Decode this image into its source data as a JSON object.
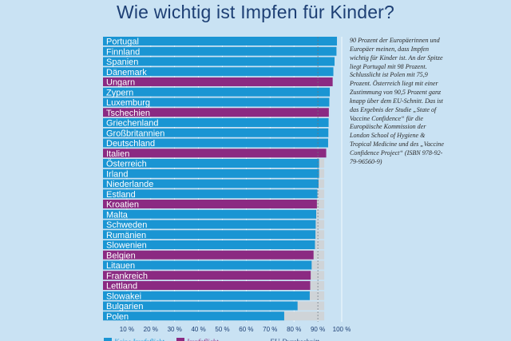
{
  "page": {
    "title": "Wie wichtig ist Impfen für Kinder?",
    "caption": "90 Prozent der Europäerinnen und Europäer meinen, dass Impfen wichtig für Kinder ist. An der Spitze liegt Portugal mit 98 Prozent. Schlusslicht ist Polen mit 75,9 Prozent. Österreich liegt mit einer Zustimmung von 90,5 Prozent ganz knapp über dem EU-Schnitt. Das ist das Ergebnis der Studie „State of Vaccine Confidence“ für die Europäische Kommission der London School of Hygiene & Tropical Medicine und des „Vaccine Confidence Project“ (ISBN 978-92-79-96560-9)"
  },
  "colors": {
    "background": "#c9e2f3",
    "no_obligation": "#1a95d3",
    "obligation": "#8b2a82",
    "eu_average": "#cfd4d8",
    "title": "#1d3f74"
  },
  "legend": {
    "no_obligation": "Keine Impfpflicht",
    "obligation": "Impfpflicht",
    "eu_average": "EU-Durchschnitt"
  },
  "chart_data": {
    "type": "bar",
    "orientation": "horizontal",
    "title": "Wie wichtig ist Impfen für Kinder?",
    "unit": "%",
    "xlim": [
      0,
      100
    ],
    "xticks": [
      "10 %",
      "20 %",
      "30 %",
      "40 %",
      "50 %",
      "60 %",
      "70 %",
      "80 %",
      "90 %",
      "100 %"
    ],
    "eu_average": 90,
    "categories": [
      "Portugal",
      "Finnland",
      "Spanien",
      "Dänemark",
      "Ungarn",
      "Zypern",
      "Luxemburg",
      "Tschechien",
      "Griechenland",
      "Großbritannien",
      "Deutschland",
      "Italien",
      "Österreich",
      "Irland",
      "Niederlande",
      "Estland",
      "Kroatien",
      "Malta",
      "Schweden",
      "Rumänien",
      "Slowenien",
      "Belgien",
      "Litauen",
      "Frankreich",
      "Lettland",
      "Slowakei",
      "Bulgarien",
      "Polen"
    ],
    "values": [
      98,
      97.8,
      97,
      96.5,
      96.2,
      95,
      94.8,
      94.6,
      94.5,
      94.4,
      94.3,
      93.5,
      90.5,
      90.5,
      90.3,
      89.8,
      89.6,
      89.3,
      89.1,
      89,
      88.8,
      88.2,
      87.4,
      87,
      86.8,
      86.6,
      81.5,
      75.9
    ],
    "obligation": [
      false,
      false,
      false,
      false,
      true,
      false,
      false,
      true,
      false,
      false,
      false,
      true,
      false,
      false,
      false,
      false,
      true,
      false,
      false,
      false,
      false,
      true,
      false,
      true,
      true,
      false,
      false,
      false
    ]
  }
}
